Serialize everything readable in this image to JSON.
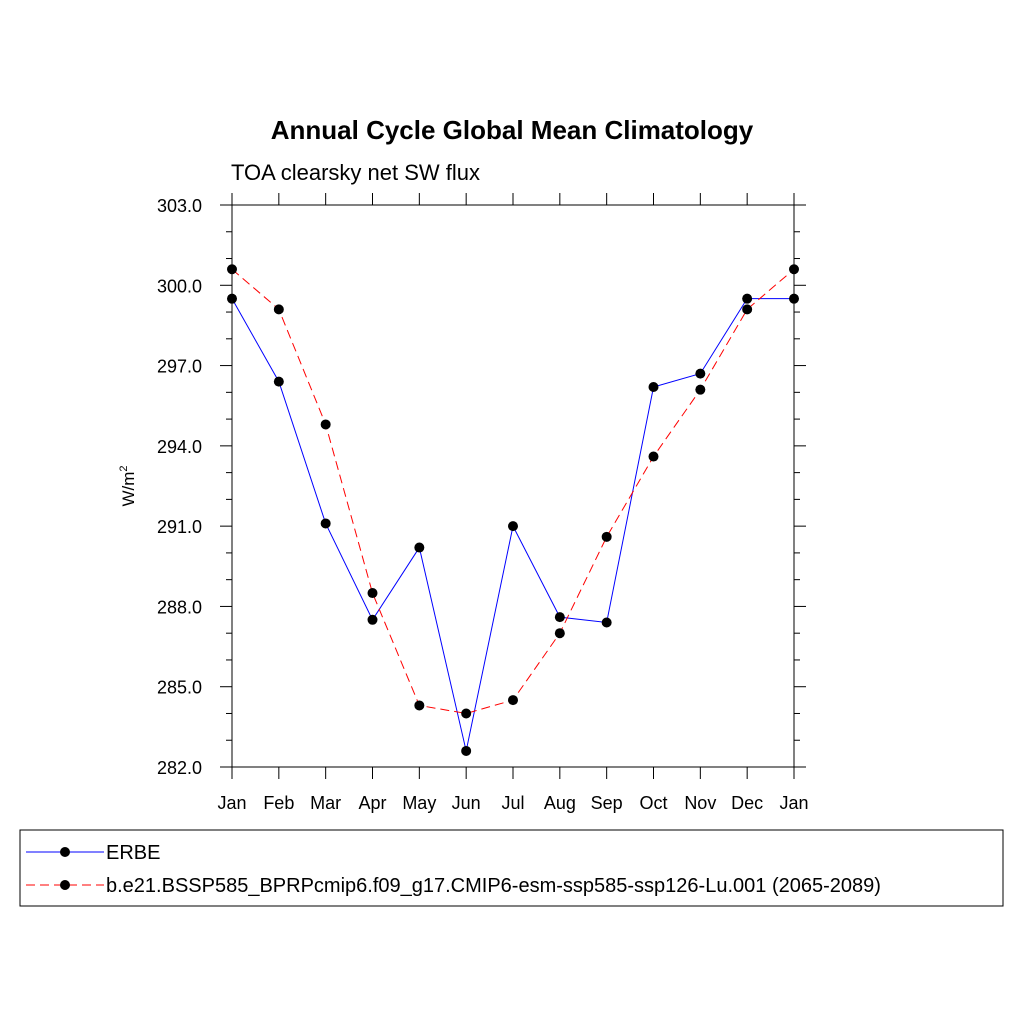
{
  "chart_data": {
    "type": "line",
    "title": "Annual Cycle Global Mean Climatology",
    "subtitle": "TOA clearsky net SW flux",
    "ylabel": "W/m",
    "ylabel_superscript": "2",
    "xlabel": "",
    "categories": [
      "Jan",
      "Feb",
      "Mar",
      "Apr",
      "May",
      "Jun",
      "Jul",
      "Aug",
      "Sep",
      "Oct",
      "Nov",
      "Dec",
      "Jan"
    ],
    "ylim": [
      282.0,
      303.0
    ],
    "yticks": [
      "282.0",
      "285.0",
      "288.0",
      "291.0",
      "294.0",
      "297.0",
      "300.0",
      "303.0"
    ],
    "grid": false,
    "legend_position": "bottom",
    "series": [
      {
        "name": "ERBE",
        "color": "#0000ff",
        "style": "solid",
        "values": [
          299.5,
          296.4,
          291.1,
          287.5,
          290.2,
          282.6,
          291.0,
          287.6,
          287.4,
          296.2,
          296.7,
          299.5,
          299.5
        ]
      },
      {
        "name": "b.e21.BSSP585_BPRPcmip6.f09_g17.CMIP6-esm-ssp585-ssp126-Lu.001 (2065-2089)",
        "color": "#ff0000",
        "style": "dashed",
        "values": [
          300.6,
          299.1,
          294.8,
          288.5,
          284.3,
          284.0,
          284.5,
          287.0,
          290.6,
          293.6,
          296.1,
          299.1,
          300.6
        ]
      }
    ]
  }
}
